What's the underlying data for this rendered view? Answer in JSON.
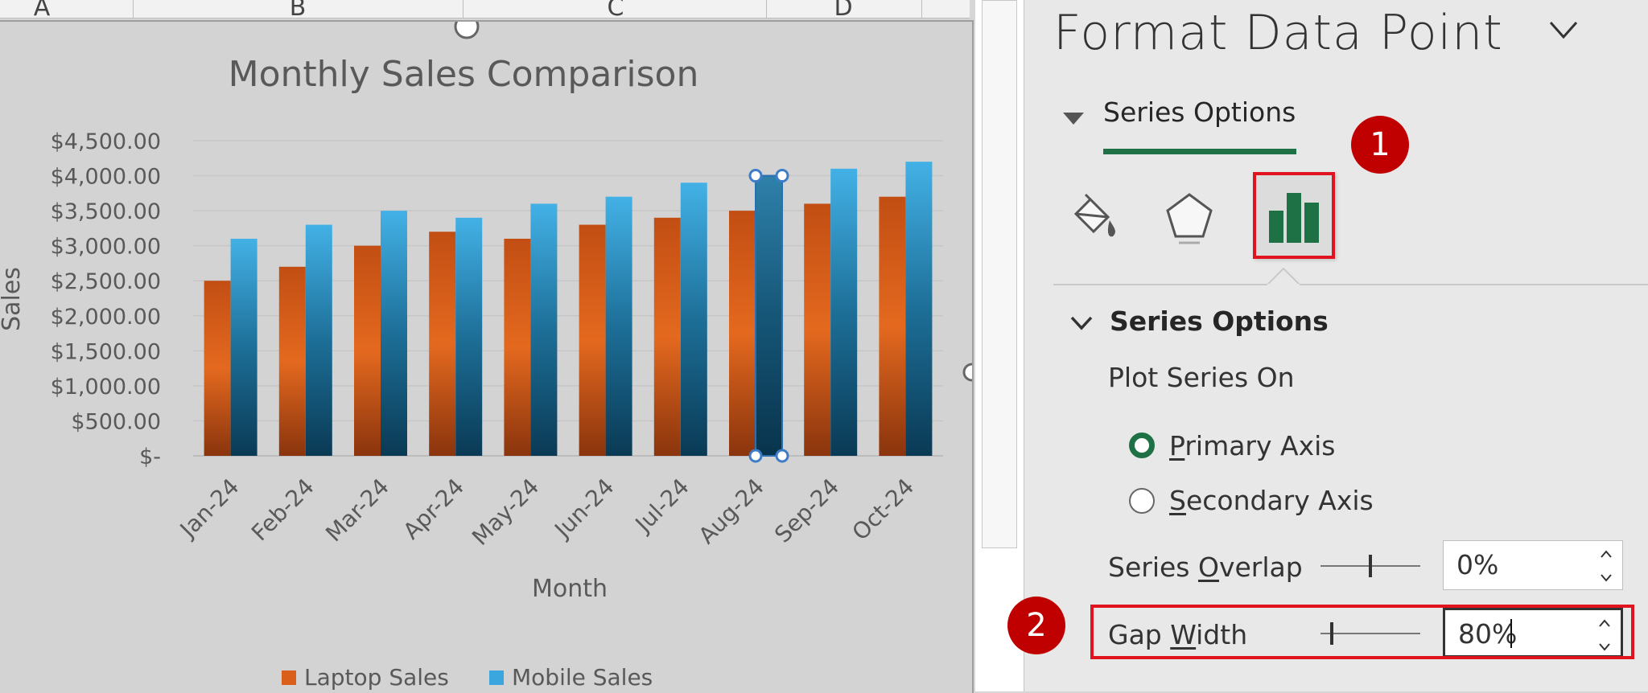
{
  "sheet": {
    "columns": [
      "A",
      "B",
      "C",
      "D"
    ]
  },
  "chart_data": {
    "type": "bar",
    "title": "Monthly Sales Comparison",
    "xlabel": "Month",
    "ylabel": "Sales",
    "categories": [
      "Jan-24",
      "Feb-24",
      "Mar-24",
      "Apr-24",
      "May-24",
      "Jun-24",
      "Jul-24",
      "Aug-24",
      "Sep-24",
      "Oct-24"
    ],
    "series": [
      {
        "name": "Laptop Sales",
        "values": [
          2500,
          2700,
          3000,
          3200,
          3100,
          3300,
          3400,
          3500,
          3600,
          3700
        ],
        "color": "#d95f1a"
      },
      {
        "name": "Mobile Sales",
        "values": [
          3100,
          3300,
          3500,
          3400,
          3600,
          3700,
          3900,
          4000,
          4100,
          4200
        ],
        "color": "#3aa6dd"
      }
    ],
    "ylim": [
      0,
      4500
    ],
    "yticks": [
      "$-",
      "$500.00",
      "$1,000.00",
      "$1,500.00",
      "$2,000.00",
      "$2,500.00",
      "$3,000.00",
      "$3,500.00",
      "$4,000.00",
      "$4,500.00"
    ],
    "grid": true,
    "legend": "bottom",
    "selected_point": {
      "series": "Mobile Sales",
      "category": "Aug-24"
    }
  },
  "pane": {
    "title": "Format Data Point",
    "tab_label": "Series Options",
    "section_title": "Series Options",
    "plot_series_label": "Plot Series On",
    "primary_axis": {
      "pre": "",
      "key": "P",
      "post": "rimary Axis",
      "selected": true
    },
    "secondary_axis": {
      "pre": "",
      "key": "S",
      "post": "econdary Axis",
      "selected": false
    },
    "series_overlap": {
      "pre": "Series ",
      "key": "O",
      "post": "verlap",
      "value": "0%",
      "level": 0.5
    },
    "gap_width": {
      "pre": "Gap ",
      "key": "W",
      "post": "idth",
      "value": "80%",
      "level": 0.1
    },
    "accent": "#1e7145"
  },
  "annotations": {
    "step1": "1",
    "step2": "2",
    "highlight_color": "#e0141e"
  }
}
